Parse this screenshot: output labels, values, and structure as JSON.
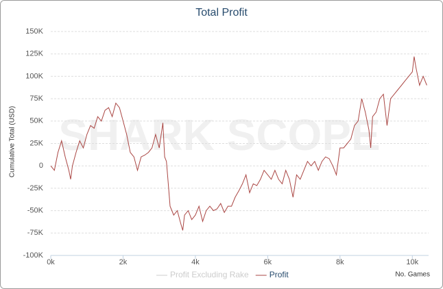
{
  "chart_data": {
    "type": "line",
    "title": "Total Profit",
    "watermark": "SHARK SCOPE",
    "xlabel": "No. Games",
    "ylabel": "Cumulative Total (USD)",
    "xlim": [
      0,
      10450
    ],
    "ylim": [
      -100000,
      150000
    ],
    "xticks": [
      {
        "value": 0,
        "label": "0k"
      },
      {
        "value": 2000,
        "label": "2k"
      },
      {
        "value": 4000,
        "label": "4k"
      },
      {
        "value": 6000,
        "label": "6k"
      },
      {
        "value": 8000,
        "label": "8k"
      },
      {
        "value": 10000,
        "label": "10k"
      }
    ],
    "yticks": [
      {
        "value": -100000,
        "label": "-100K"
      },
      {
        "value": -75000,
        "label": "-75K"
      },
      {
        "value": -50000,
        "label": "-50K"
      },
      {
        "value": -25000,
        "label": "-25K"
      },
      0,
      {
        "value": 25000,
        "label": "25K"
      },
      {
        "value": 50000,
        "label": "50K"
      },
      {
        "value": 75000,
        "label": "75K"
      },
      {
        "value": 100000,
        "label": "100K"
      },
      {
        "value": 125000,
        "label": "125K"
      },
      {
        "value": 150000,
        "label": "150K"
      }
    ],
    "grid": true,
    "x": [
      0,
      100,
      200,
      300,
      400,
      500,
      550,
      600,
      700,
      800,
      900,
      1000,
      1100,
      1200,
      1300,
      1400,
      1500,
      1600,
      1700,
      1800,
      1900,
      2000,
      2100,
      2200,
      2300,
      2400,
      2500,
      2600,
      2700,
      2800,
      2900,
      3000,
      3100,
      3150,
      3200,
      3250,
      3300,
      3400,
      3500,
      3600,
      3650,
      3700,
      3800,
      3900,
      4000,
      4100,
      4200,
      4300,
      4400,
      4500,
      4600,
      4700,
      4800,
      4900,
      5000,
      5100,
      5200,
      5300,
      5400,
      5500,
      5600,
      5700,
      5800,
      5900,
      6000,
      6100,
      6200,
      6300,
      6400,
      6500,
      6600,
      6700,
      6800,
      6900,
      7000,
      7100,
      7200,
      7300,
      7400,
      7500,
      7600,
      7700,
      7800,
      7900,
      8000,
      8100,
      8200,
      8300,
      8400,
      8500,
      8600,
      8700,
      8800,
      8850,
      8900,
      9000,
      9100,
      9200,
      9300,
      9400,
      9500,
      9600,
      9700,
      9800,
      9900,
      10000,
      10050,
      10100,
      10200,
      10300,
      10400
    ],
    "series": [
      {
        "name": "Profit Excluding Rake",
        "color": "#cccccc",
        "visible": false
      },
      {
        "name": "Profit",
        "color": "#aa4643",
        "visible": true,
        "values": [
          0,
          -5000,
          15000,
          28000,
          10000,
          -5000,
          -15000,
          0,
          15000,
          28000,
          20000,
          35000,
          45000,
          42000,
          55000,
          50000,
          62000,
          65000,
          55000,
          70000,
          65000,
          50000,
          35000,
          15000,
          10000,
          -5000,
          10000,
          12000,
          15000,
          20000,
          35000,
          20000,
          48000,
          10000,
          5000,
          -20000,
          -45000,
          -55000,
          -50000,
          -65000,
          -72000,
          -55000,
          -50000,
          -60000,
          -55000,
          -45000,
          -62000,
          -50000,
          -45000,
          -50000,
          -48000,
          -42000,
          -52000,
          -45000,
          -45000,
          -35000,
          -28000,
          -20000,
          -10000,
          -30000,
          -20000,
          -22000,
          -15000,
          -5000,
          -10000,
          -15000,
          -5000,
          -15000,
          -20000,
          -5000,
          -15000,
          -35000,
          -10000,
          -15000,
          -5000,
          5000,
          0,
          5000,
          -5000,
          5000,
          10000,
          8000,
          0,
          -10000,
          20000,
          20000,
          25000,
          30000,
          45000,
          50000,
          75000,
          60000,
          40000,
          20000,
          55000,
          60000,
          75000,
          80000,
          45000,
          75000,
          80000,
          85000,
          90000,
          95000,
          100000,
          105000,
          122000,
          110000,
          90000,
          100000,
          90000
        ]
      }
    ]
  }
}
